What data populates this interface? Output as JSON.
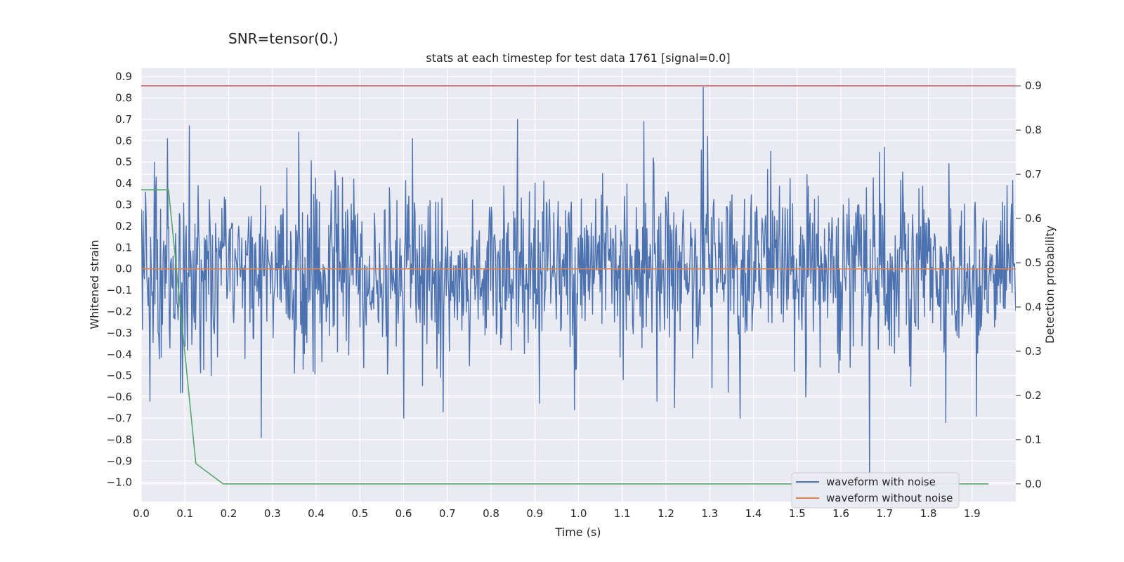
{
  "chart_data": {
    "type": "line",
    "suptitle": "SNR=tensor(0.)",
    "title": "stats at each timestep for test data 1761 [signal=0.0]",
    "xlabel": "Time (s)",
    "ylabel_left": "Whitened strain",
    "ylabel_right": "Detection probability",
    "xlim": [
      0.0,
      2.0
    ],
    "ylim_left": [
      -1.09,
      0.94
    ],
    "ylim_right": [
      -0.04,
      0.94
    ],
    "x_ticks": [
      "0.0",
      "0.1",
      "0.2",
      "0.3",
      "0.4",
      "0.5",
      "0.6",
      "0.7",
      "0.8",
      "0.9",
      "1.0",
      "1.1",
      "1.2",
      "1.3",
      "1.4",
      "1.5",
      "1.6",
      "1.7",
      "1.8",
      "1.9"
    ],
    "x_tick_values": [
      0.0,
      0.1,
      0.2,
      0.3,
      0.4,
      0.5,
      0.6,
      0.7,
      0.8,
      0.9,
      1.0,
      1.1,
      1.2,
      1.3,
      1.4,
      1.5,
      1.6,
      1.7,
      1.8,
      1.9
    ],
    "y_left_ticks": [
      "0.9",
      "0.8",
      "0.7",
      "0.6",
      "0.5",
      "0.4",
      "0.3",
      "0.2",
      "0.1",
      "0.0",
      "−0.1",
      "−0.2",
      "−0.3",
      "−0.4",
      "−0.5",
      "−0.6",
      "−0.7",
      "−0.8",
      "−0.9",
      "−1.0"
    ],
    "y_left_tick_values": [
      0.9,
      0.8,
      0.7,
      0.6,
      0.5,
      0.4,
      0.3,
      0.2,
      0.1,
      0.0,
      -0.1,
      -0.2,
      -0.3,
      -0.4,
      -0.5,
      -0.6,
      -0.7,
      -0.8,
      -0.9,
      -1.0
    ],
    "y_right_ticks": [
      "0.9",
      "0.8",
      "0.7",
      "0.6",
      "0.5",
      "0.4",
      "0.3",
      "0.2",
      "0.1",
      "0.0"
    ],
    "y_right_tick_values": [
      0.9,
      0.8,
      0.7,
      0.6,
      0.5,
      0.4,
      0.3,
      0.2,
      0.1,
      0.0
    ],
    "series": [
      {
        "name": "waveform with noise",
        "axis": "left",
        "color": "#4c72b0",
        "kind": "noise",
        "n_points": 1400,
        "amplitude_sigma": 0.2,
        "peaks": [
          [
            0.0,
            0.28
          ],
          [
            0.01,
            0.36
          ],
          [
            0.02,
            -0.62
          ],
          [
            0.035,
            0.43
          ],
          [
            0.06,
            0.61
          ],
          [
            0.09,
            -0.58
          ],
          [
            0.11,
            0.67
          ],
          [
            0.13,
            0.39
          ],
          [
            0.16,
            -0.5
          ],
          [
            0.275,
            -0.79
          ],
          [
            0.36,
            0.64
          ],
          [
            0.37,
            -0.47
          ],
          [
            0.6,
            -0.7
          ],
          [
            0.62,
            0.61
          ],
          [
            0.69,
            -0.67
          ],
          [
            0.86,
            0.7
          ],
          [
            0.91,
            -0.63
          ],
          [
            0.99,
            -0.66
          ],
          [
            1.15,
            0.69
          ],
          [
            1.18,
            -0.62
          ],
          [
            1.22,
            -0.65
          ],
          [
            1.285,
            0.85
          ],
          [
            1.37,
            -0.7
          ],
          [
            1.44,
            0.55
          ],
          [
            1.52,
            -0.6
          ],
          [
            1.665,
            -1.0
          ],
          [
            1.7,
            0.57
          ],
          [
            1.76,
            -0.55
          ],
          [
            1.84,
            -0.72
          ],
          [
            1.91,
            -0.69
          ],
          [
            1.98,
            0.39
          ]
        ]
      },
      {
        "name": "waveform without noise",
        "axis": "left",
        "color": "#dd8452",
        "x": [
          0.0,
          2.0
        ],
        "y": [
          0.0,
          0.0
        ]
      },
      {
        "name": "detection probability",
        "axis": "right",
        "color": "#55a868",
        "x": [
          0.0,
          0.0625,
          0.125,
          0.1875,
          0.25,
          0.5,
          1.0,
          1.5,
          1.9375
        ],
        "y": [
          0.665,
          0.665,
          0.046,
          0.0,
          0.0,
          0.0,
          0.0,
          0.0,
          0.0
        ]
      },
      {
        "name": "threshold",
        "axis": "right",
        "color": "#c44e52",
        "x": [
          0.0,
          2.0
        ],
        "y": [
          0.9,
          0.9
        ]
      }
    ],
    "legend": {
      "placement": "lower-right",
      "entries": [
        {
          "label": "waveform with noise",
          "color": "#4c72b0"
        },
        {
          "label": "waveform without noise",
          "color": "#dd8452"
        }
      ]
    },
    "grid": true,
    "background": "#eaeaf2"
  }
}
